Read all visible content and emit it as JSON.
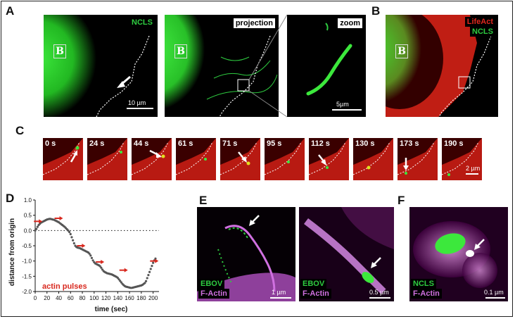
{
  "panel_letters": {
    "a": "A",
    "b": "B",
    "c": "C",
    "d": "D",
    "e": "E",
    "f": "F"
  },
  "panel_a": {
    "img1": {
      "label": "NCLS",
      "region_mark": "B",
      "scalebar": "10 µm"
    },
    "img2": {
      "label": "projection",
      "region_mark": "B"
    },
    "img3": {
      "label": "zoom",
      "scalebar": "5µm"
    }
  },
  "panel_b": {
    "label_red": "LifeAct",
    "label_green": "NCLS",
    "region_mark": "B"
  },
  "panel_c": {
    "frames": [
      "0 s",
      "24 s",
      "44 s",
      "61 s",
      "71 s",
      "95 s",
      "112 s",
      "130 s",
      "173 s",
      "190 s"
    ],
    "scalebar": "2 µm"
  },
  "panel_e": {
    "img1": {
      "label_green": "EBOV",
      "label_magenta": "F-Actin",
      "scalebar": "1 µm"
    },
    "img2": {
      "label_green": "EBOV",
      "label_magenta": "F-Actin",
      "scalebar": "0.5 µm"
    }
  },
  "panel_f": {
    "label_green": "NCLS",
    "label_magenta": "F-Actin",
    "scalebar": "0.1 µm"
  },
  "colors": {
    "green": "#2ecc40",
    "red": "#e0281e",
    "magenta": "#d070e0",
    "arrow_red": "#d8281e"
  },
  "chart_data": {
    "type": "scatter",
    "xlabel": "time (sec)",
    "ylabel": "distance from origin",
    "xlim": [
      0,
      210
    ],
    "ylim": [
      -2.0,
      1.0
    ],
    "xticks": [
      0,
      20,
      40,
      60,
      80,
      100,
      120,
      140,
      160,
      180,
      200
    ],
    "yticks": [
      1.0,
      0.5,
      0.0,
      -0.5,
      -1.0,
      -1.5,
      -2.0
    ],
    "reference_line_y": 0,
    "annotation": "actin pulses",
    "points": [
      [
        0,
        0.0
      ],
      [
        2,
        0.05
      ],
      [
        4,
        0.12
      ],
      [
        6,
        0.18
      ],
      [
        8,
        0.22
      ],
      [
        10,
        0.26
      ],
      [
        12,
        0.28
      ],
      [
        14,
        0.3
      ],
      [
        16,
        0.32
      ],
      [
        18,
        0.34
      ],
      [
        20,
        0.36
      ],
      [
        22,
        0.37
      ],
      [
        24,
        0.38
      ],
      [
        26,
        0.38
      ],
      [
        28,
        0.37
      ],
      [
        30,
        0.36
      ],
      [
        32,
        0.35
      ],
      [
        34,
        0.33
      ],
      [
        36,
        0.31
      ],
      [
        38,
        0.29
      ],
      [
        40,
        0.27
      ],
      [
        42,
        0.24
      ],
      [
        44,
        0.21
      ],
      [
        46,
        0.18
      ],
      [
        48,
        0.15
      ],
      [
        50,
        0.12
      ],
      [
        52,
        0.08
      ],
      [
        54,
        0.04
      ],
      [
        56,
        0.0
      ],
      [
        58,
        -0.05
      ],
      [
        60,
        -0.12
      ],
      [
        62,
        -0.22
      ],
      [
        64,
        -0.32
      ],
      [
        66,
        -0.42
      ],
      [
        68,
        -0.5
      ],
      [
        70,
        -0.54
      ],
      [
        72,
        -0.56
      ],
      [
        74,
        -0.57
      ],
      [
        76,
        -0.58
      ],
      [
        78,
        -0.6
      ],
      [
        80,
        -0.62
      ],
      [
        82,
        -0.64
      ],
      [
        84,
        -0.66
      ],
      [
        86,
        -0.68
      ],
      [
        88,
        -0.7
      ],
      [
        90,
        -0.72
      ],
      [
        92,
        -0.76
      ],
      [
        94,
        -0.82
      ],
      [
        96,
        -0.9
      ],
      [
        98,
        -0.98
      ],
      [
        100,
        -1.04
      ],
      [
        102,
        -1.08
      ],
      [
        104,
        -1.1
      ],
      [
        106,
        -1.12
      ],
      [
        108,
        -1.14
      ],
      [
        110,
        -1.17
      ],
      [
        112,
        -1.22
      ],
      [
        114,
        -1.28
      ],
      [
        116,
        -1.33
      ],
      [
        118,
        -1.36
      ],
      [
        120,
        -1.38
      ],
      [
        122,
        -1.4
      ],
      [
        124,
        -1.41
      ],
      [
        126,
        -1.42
      ],
      [
        128,
        -1.43
      ],
      [
        130,
        -1.44
      ],
      [
        132,
        -1.46
      ],
      [
        134,
        -1.48
      ],
      [
        136,
        -1.5
      ],
      [
        138,
        -1.52
      ],
      [
        140,
        -1.55
      ],
      [
        142,
        -1.6
      ],
      [
        144,
        -1.65
      ],
      [
        146,
        -1.7
      ],
      [
        148,
        -1.75
      ],
      [
        150,
        -1.79
      ],
      [
        152,
        -1.82
      ],
      [
        154,
        -1.84
      ],
      [
        156,
        -1.85
      ],
      [
        158,
        -1.86
      ],
      [
        160,
        -1.87
      ],
      [
        162,
        -1.88
      ],
      [
        164,
        -1.88
      ],
      [
        166,
        -1.87
      ],
      [
        168,
        -1.86
      ],
      [
        170,
        -1.85
      ],
      [
        172,
        -1.84
      ],
      [
        174,
        -1.83
      ],
      [
        176,
        -1.82
      ],
      [
        178,
        -1.81
      ],
      [
        180,
        -1.8
      ],
      [
        182,
        -1.78
      ],
      [
        184,
        -1.75
      ],
      [
        186,
        -1.72
      ],
      [
        188,
        -1.66
      ],
      [
        190,
        -1.56
      ],
      [
        192,
        -1.46
      ],
      [
        194,
        -1.36
      ],
      [
        196,
        -1.26
      ],
      [
        198,
        -1.16
      ],
      [
        200,
        -1.06
      ],
      [
        202,
        -0.98
      ],
      [
        204,
        -0.92
      ]
    ],
    "pulse_markers": [
      [
        5,
        0.3
      ],
      [
        40,
        0.4
      ],
      [
        78,
        -0.5
      ],
      [
        110,
        -1.03
      ],
      [
        150,
        -1.3
      ],
      [
        202,
        -1.0
      ]
    ]
  }
}
